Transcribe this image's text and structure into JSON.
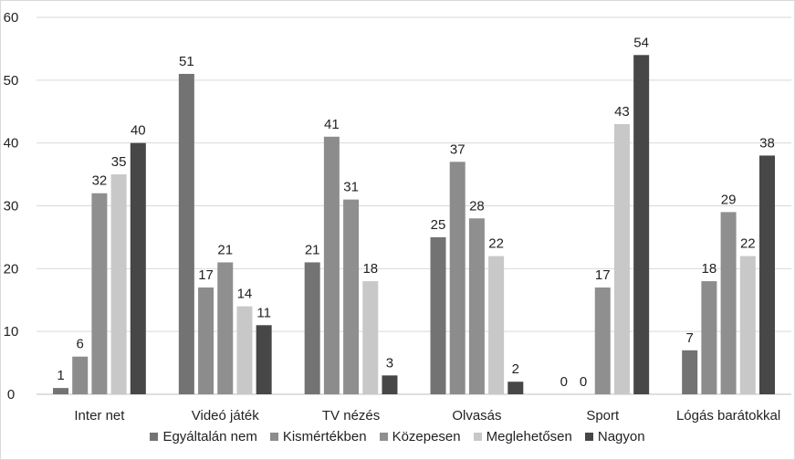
{
  "chart_data": {
    "type": "bar",
    "categories": [
      "Inter net",
      "Videó játék",
      "TV nézés",
      "Olvasás",
      "Sport",
      "Lógás barátokkal"
    ],
    "series": [
      {
        "name": "Egyáltalán nem",
        "color": "#737373",
        "values": [
          1,
          51,
          21,
          25,
          0,
          7
        ]
      },
      {
        "name": "Kismértékben",
        "color": "#8c8c8c",
        "values": [
          6,
          17,
          41,
          37,
          0,
          18
        ]
      },
      {
        "name": "Közepesen",
        "color": "#8f8f8f",
        "values": [
          32,
          21,
          31,
          28,
          17,
          29
        ]
      },
      {
        "name": "Meglehetősen",
        "color": "#c8c8c8",
        "values": [
          35,
          14,
          18,
          22,
          43,
          22
        ]
      },
      {
        "name": "Nagyon",
        "color": "#474747",
        "values": [
          40,
          11,
          3,
          2,
          54,
          38
        ]
      }
    ],
    "ylim": [
      0,
      60
    ],
    "yticks": [
      "0",
      "10",
      "20",
      "30",
      "40",
      "50",
      "60"
    ],
    "grid": true,
    "legend_position": "bottom"
  }
}
